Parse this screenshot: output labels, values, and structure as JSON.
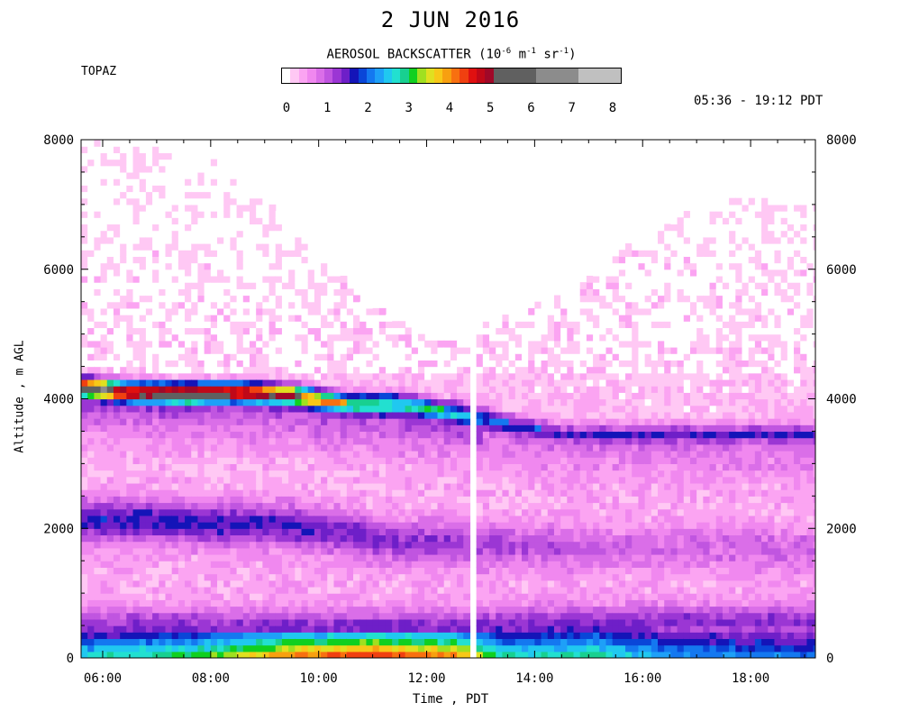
{
  "chart_data": {
    "type": "heatmap",
    "title": "2 JUN 2016",
    "station": "TOPAZ",
    "time_range": "05:36 - 19:12 PDT",
    "colorbar": {
      "title_prefix": "AEROSOL BACKSCATTER (10",
      "title_exp1": "-6",
      "title_mid1": " m",
      "title_exp2": "-1",
      "title_mid2": " sr",
      "title_exp3": "-1",
      "title_suffix": ")",
      "ticks": [
        "0",
        "1",
        "2",
        "3",
        "4",
        "5",
        "6",
        "7",
        "8"
      ],
      "tick_values": [
        0,
        1,
        2,
        3,
        4,
        5,
        6,
        7,
        8
      ],
      "colors": [
        "#ffffff",
        "#ffc8f4",
        "#fba4f2",
        "#f088ef",
        "#da6ee8",
        "#c055e0",
        "#9b36d4",
        "#6e1fc8",
        "#1414b8",
        "#0a46d8",
        "#1478f0",
        "#1ea0f8",
        "#20c8f0",
        "#22e0d0",
        "#18d090",
        "#10d020",
        "#a0e020",
        "#e0e020",
        "#f8c818",
        "#f8a010",
        "#f87010",
        "#f04010",
        "#e01010",
        "#c00818",
        "#a00828",
        "#606060",
        "#8c8c8c",
        "#c0c0c0"
      ],
      "boundaries": [
        0,
        0.2,
        0.4,
        0.6,
        0.8,
        1,
        1.2,
        1.4,
        1.6,
        1.8,
        2,
        2.2,
        2.4,
        2.6,
        2.8,
        3,
        3.2,
        3.4,
        3.6,
        3.8,
        4,
        4.2,
        4.4,
        4.6,
        4.8,
        5,
        6,
        7,
        8
      ]
    },
    "xlabel": "Time , PDT",
    "ylabel": "Altitude , m AGL",
    "x_ticks": [
      "06:00",
      "08:00",
      "10:00",
      "12:00",
      "14:00",
      "16:00",
      "18:00"
    ],
    "x_tick_hours": [
      6,
      8,
      10,
      12,
      14,
      16,
      18
    ],
    "x_range_hours": [
      5.6,
      19.2
    ],
    "y_ticks": [
      "0",
      "2000",
      "4000",
      "6000",
      "8000"
    ],
    "y_tick_values": [
      0,
      2000,
      4000,
      6000,
      8000
    ],
    "y_range": [
      0,
      8000
    ],
    "data_gaps_hours": [
      [
        12.75,
        12.95
      ]
    ],
    "data_top_altitude": [
      {
        "hour": 5.6,
        "alt": 8000
      },
      {
        "hour": 7.6,
        "alt": 8000
      },
      {
        "hour": 8.8,
        "alt": 7200
      },
      {
        "hour": 9.9,
        "alt": 6300
      },
      {
        "hour": 10.8,
        "alt": 5500
      },
      {
        "hour": 12.0,
        "alt": 4900
      },
      {
        "hour": 12.7,
        "alt": 4800
      },
      {
        "hour": 13.0,
        "alt": 5300
      },
      {
        "hour": 13.6,
        "alt": 5300
      },
      {
        "hour": 14.7,
        "alt": 5600
      },
      {
        "hour": 15.8,
        "alt": 6400
      },
      {
        "hour": 16.8,
        "alt": 6800
      },
      {
        "hour": 17.6,
        "alt": 7000
      },
      {
        "hour": 19.0,
        "alt": 7100
      }
    ],
    "features": [
      {
        "name": "elevated smoke layer core",
        "points": [
          [
            5.6,
            4200,
            4.8
          ],
          [
            6.5,
            4120,
            4.5
          ],
          [
            7.5,
            4100,
            5.2
          ],
          [
            8.5,
            4120,
            4.5
          ],
          [
            9.5,
            4080,
            4.0
          ],
          [
            10.5,
            3950,
            2.6
          ],
          [
            11.5,
            3950,
            2.2
          ],
          [
            12.7,
            3800,
            1.6
          ],
          [
            13.5,
            3650,
            1.2
          ],
          [
            14.5,
            3500,
            0.8
          ]
        ]
      },
      {
        "name": "mid-level layer",
        "points": [
          [
            5.6,
            2150,
            1.6
          ],
          [
            7.5,
            2100,
            1.6
          ],
          [
            9.5,
            2050,
            1.5
          ],
          [
            11.5,
            1800,
            1.3
          ],
          [
            13.5,
            1750,
            1.1
          ],
          [
            15.5,
            1700,
            0.9
          ]
        ]
      },
      {
        "name": "boundary layer",
        "points": [
          [
            5.6,
            150,
            2.8
          ],
          [
            8.0,
            150,
            3.3
          ],
          [
            9.5,
            200,
            4.3
          ],
          [
            11.0,
            300,
            4.6
          ],
          [
            12.5,
            350,
            4.2
          ],
          [
            13.5,
            100,
            2.8
          ],
          [
            15.0,
            150,
            3.0
          ],
          [
            16.5,
            150,
            2.4
          ],
          [
            18.5,
            150,
            2.2
          ]
        ]
      }
    ]
  }
}
